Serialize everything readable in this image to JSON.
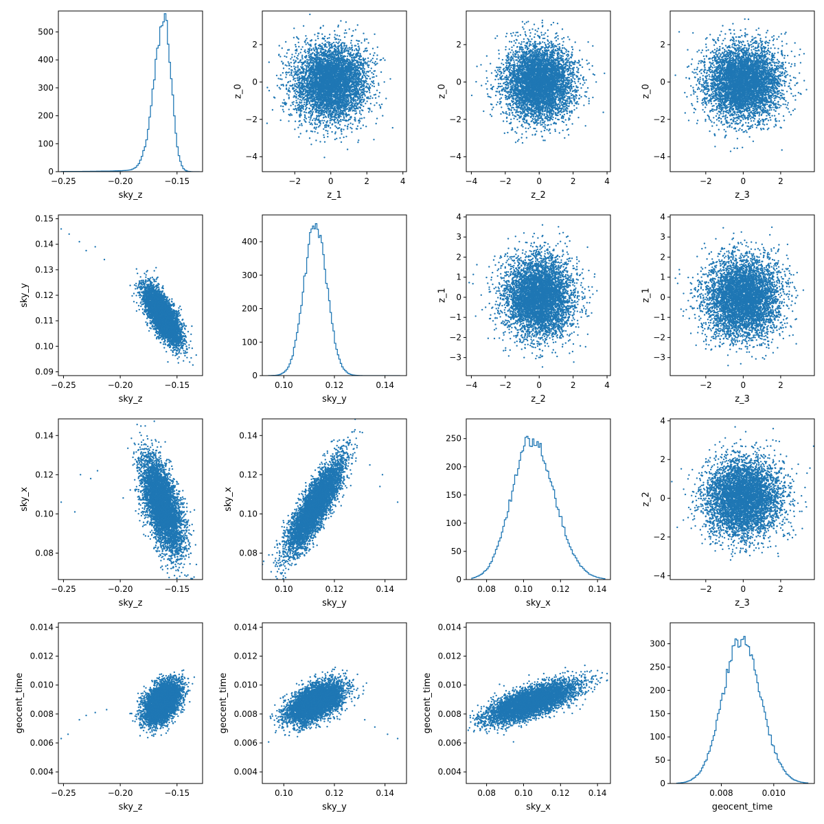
{
  "colors": {
    "series": "#1f77b4",
    "axis": "#000000",
    "background": "#ffffff"
  },
  "chart_data": [
    {
      "row": 0,
      "col": 0,
      "type": "histogram",
      "xlabel": "sky_z",
      "ylabel": "",
      "xlim": [
        -0.2545,
        -0.1275
      ],
      "ylim": [
        0,
        575
      ],
      "xticks": [
        -0.25,
        -0.2,
        -0.15
      ],
      "xticklabels": [
        "−0.25",
        "−0.20",
        "−0.15"
      ],
      "yticks": [
        0,
        100,
        200,
        300,
        400,
        500
      ],
      "yticklabels": [
        "0",
        "100",
        "200",
        "300",
        "400",
        "500"
      ],
      "peaks": [
        {
          "center": -0.161,
          "height": 548,
          "width_left": 0.009,
          "width_right": 0.006
        }
      ],
      "range": [
        -0.252,
        -0.13
      ],
      "tail_left": 0.03
    },
    {
      "row": 0,
      "col": 1,
      "type": "scatter",
      "xlabel": "z_1",
      "ylabel": "z_0",
      "xlim": [
        -3.8,
        4.2
      ],
      "ylim": [
        -4.8,
        3.8
      ],
      "xticks": [
        -2,
        0,
        2,
        4
      ],
      "xticklabels": [
        "−2",
        "0",
        "2",
        "4"
      ],
      "yticks": [
        -4,
        -2,
        0,
        2
      ],
      "yticklabels": [
        "−4",
        "−2",
        "0",
        "2"
      ],
      "center": [
        0,
        0
      ],
      "spread": [
        1,
        1
      ],
      "corr": 0
    },
    {
      "row": 0,
      "col": 2,
      "type": "scatter",
      "xlabel": "z_2",
      "ylabel": "z_0",
      "xlim": [
        -4.3,
        4.2
      ],
      "ylim": [
        -4.8,
        3.8
      ],
      "xticks": [
        -4,
        -2,
        0,
        2,
        4
      ],
      "xticklabels": [
        "−4",
        "−2",
        "0",
        "2",
        "4"
      ],
      "yticks": [
        -4,
        -2,
        0,
        2
      ],
      "yticklabels": [
        "−4",
        "−2",
        "0",
        "2"
      ],
      "center": [
        0,
        0
      ],
      "spread": [
        1,
        1
      ],
      "corr": 0
    },
    {
      "row": 0,
      "col": 3,
      "type": "scatter",
      "xlabel": "z_3",
      "ylabel": "z_0",
      "xlim": [
        -3.9,
        3.8
      ],
      "ylim": [
        -4.8,
        3.8
      ],
      "xticks": [
        -2,
        0,
        2
      ],
      "xticklabels": [
        "−2",
        "0",
        "2"
      ],
      "yticks": [
        -4,
        -2,
        0,
        2
      ],
      "yticklabels": [
        "−4",
        "−2",
        "0",
        "2"
      ],
      "center": [
        0,
        0
      ],
      "spread": [
        1,
        1
      ],
      "corr": 0
    },
    {
      "row": 1,
      "col": 0,
      "type": "scatter",
      "xlabel": "sky_z",
      "ylabel": "sky_y",
      "xlim": [
        -0.2545,
        -0.1275
      ],
      "ylim": [
        0.0885,
        0.1515
      ],
      "xticks": [
        -0.25,
        -0.2,
        -0.15
      ],
      "xticklabels": [
        "−0.25",
        "−0.20",
        "−0.15"
      ],
      "yticks": [
        0.09,
        0.1,
        0.11,
        0.12,
        0.13,
        0.14,
        0.15
      ],
      "yticklabels": [
        "0.09",
        "0.10",
        "0.11",
        "0.12",
        "0.13",
        "0.14",
        "0.15"
      ],
      "center": [
        -0.163,
        0.112
      ],
      "spread": [
        0.008,
        0.0055
      ],
      "corr": -0.72,
      "outliers": [
        [
          -0.252,
          0.146
        ],
        [
          -0.245,
          0.144
        ],
        [
          -0.236,
          0.141
        ],
        [
          -0.23,
          0.1375
        ],
        [
          -0.222,
          0.139
        ],
        [
          -0.214,
          0.134
        ]
      ]
    },
    {
      "row": 1,
      "col": 1,
      "type": "histogram",
      "xlabel": "sky_y",
      "ylabel": "",
      "xlim": [
        0.0915,
        0.1485
      ],
      "ylim": [
        0,
        480
      ],
      "xticks": [
        0.1,
        0.12,
        0.14
      ],
      "xticklabels": [
        "0.10",
        "0.12",
        "0.14"
      ],
      "yticks": [
        0,
        100,
        200,
        300,
        400
      ],
      "yticklabels": [
        "0",
        "100",
        "200",
        "300",
        "400"
      ],
      "peaks": [
        {
          "center": 0.1125,
          "height": 455,
          "width_left": 0.0045,
          "width_right": 0.0045
        }
      ],
      "range": [
        0.094,
        0.146
      ]
    },
    {
      "row": 1,
      "col": 2,
      "type": "scatter",
      "xlabel": "z_2",
      "ylabel": "z_1",
      "xlim": [
        -4.3,
        4.2
      ],
      "ylim": [
        -3.9,
        4.1
      ],
      "xticks": [
        -4,
        -2,
        0,
        2,
        4
      ],
      "xticklabels": [
        "−4",
        "−2",
        "0",
        "2",
        "4"
      ],
      "yticks": [
        -3,
        -2,
        -1,
        0,
        1,
        2,
        3,
        4
      ],
      "yticklabels": [
        "−3",
        "−2",
        "−1",
        "0",
        "1",
        "2",
        "3",
        "4"
      ],
      "center": [
        0,
        0
      ],
      "spread": [
        1,
        1
      ],
      "corr": 0
    },
    {
      "row": 1,
      "col": 3,
      "type": "scatter",
      "xlabel": "z_3",
      "ylabel": "z_1",
      "xlim": [
        -3.9,
        3.8
      ],
      "ylim": [
        -3.9,
        4.1
      ],
      "xticks": [
        -2,
        0,
        2
      ],
      "xticklabels": [
        "−2",
        "0",
        "2"
      ],
      "yticks": [
        -3,
        -2,
        -1,
        0,
        1,
        2,
        3,
        4
      ],
      "yticklabels": [
        "−3",
        "−2",
        "−1",
        "0",
        "1",
        "2",
        "3",
        "4"
      ],
      "center": [
        0,
        0
      ],
      "spread": [
        1,
        1
      ],
      "corr": 0
    },
    {
      "row": 2,
      "col": 0,
      "type": "scatter",
      "xlabel": "sky_z",
      "ylabel": "sky_x",
      "xlim": [
        -0.2545,
        -0.1275
      ],
      "ylim": [
        0.0665,
        0.1485
      ],
      "xticks": [
        -0.25,
        -0.2,
        -0.15
      ],
      "xticklabels": [
        "−0.25",
        "−0.20",
        "−0.15"
      ],
      "yticks": [
        0.08,
        0.1,
        0.12,
        0.14
      ],
      "yticklabels": [
        "0.08",
        "0.10",
        "0.12",
        "0.14"
      ],
      "center": [
        -0.163,
        0.104
      ],
      "spread": [
        0.009,
        0.012
      ],
      "corr": -0.6,
      "outliers": [
        [
          -0.252,
          0.106
        ],
        [
          -0.24,
          0.101
        ],
        [
          -0.235,
          0.12
        ],
        [
          -0.226,
          0.118
        ],
        [
          -0.22,
          0.122
        ]
      ]
    },
    {
      "row": 2,
      "col": 1,
      "type": "scatter",
      "xlabel": "sky_y",
      "ylabel": "sky_x",
      "xlim": [
        0.0915,
        0.1485
      ],
      "ylim": [
        0.0665,
        0.1485
      ],
      "xticks": [
        0.1,
        0.12,
        0.14
      ],
      "xticklabels": [
        "0.10",
        "0.12",
        "0.14"
      ],
      "yticks": [
        0.08,
        0.1,
        0.12,
        0.14
      ],
      "yticklabels": [
        "0.08",
        "0.10",
        "0.12",
        "0.14"
      ],
      "center": [
        0.1125,
        0.104
      ],
      "spread": [
        0.0055,
        0.012
      ],
      "corr": 0.85,
      "outliers": [
        [
          0.139,
          0.12
        ],
        [
          0.145,
          0.106
        ],
        [
          0.134,
          0.125
        ],
        [
          0.138,
          0.114
        ]
      ]
    },
    {
      "row": 2,
      "col": 2,
      "type": "histogram",
      "xlabel": "sky_x",
      "ylabel": "",
      "xlim": [
        0.069,
        0.147
      ],
      "ylim": [
        0,
        285
      ],
      "xticks": [
        0.08,
        0.1,
        0.12,
        0.14
      ],
      "xticklabels": [
        "0.08",
        "0.10",
        "0.12",
        "0.14"
      ],
      "yticks": [
        0,
        50,
        100,
        150,
        200,
        250
      ],
      "yticklabels": [
        "0",
        "50",
        "100",
        "150",
        "200",
        "250"
      ],
      "peaks": [
        {
          "center": 0.104,
          "height": 250,
          "width_left": 0.0105,
          "width_right": 0.0125
        }
      ],
      "range": [
        0.072,
        0.144
      ],
      "bumps": [
        [
          0.106,
          22
        ]
      ]
    },
    {
      "row": 2,
      "col": 3,
      "type": "scatter",
      "xlabel": "z_3",
      "ylabel": "z_2",
      "xlim": [
        -3.9,
        3.8
      ],
      "ylim": [
        -4.2,
        4.1
      ],
      "xticks": [
        -2,
        0,
        2
      ],
      "xticklabels": [
        "−2",
        "0",
        "2"
      ],
      "yticks": [
        -4,
        -2,
        0,
        2,
        4
      ],
      "yticklabels": [
        "−4",
        "−2",
        "0",
        "2",
        "4"
      ],
      "center": [
        0,
        0
      ],
      "spread": [
        1,
        1
      ],
      "corr": 0
    },
    {
      "row": 3,
      "col": 0,
      "type": "scatter",
      "xlabel": "sky_z",
      "ylabel": "geocent_time",
      "xlim": [
        -0.2545,
        -0.1275
      ],
      "ylim": [
        0.0032,
        0.0143
      ],
      "xticks": [
        -0.25,
        -0.2,
        -0.15
      ],
      "xticklabels": [
        "−0.25",
        "−0.20",
        "−0.15"
      ],
      "yticks": [
        0.004,
        0.006,
        0.008,
        0.01,
        0.012,
        0.014
      ],
      "yticklabels": [
        "0.004",
        "0.006",
        "0.008",
        "0.010",
        "0.012",
        "0.014"
      ],
      "center": [
        -0.163,
        0.0088
      ],
      "spread": [
        0.008,
        0.0007
      ],
      "corr": 0.45,
      "outliers": [
        [
          -0.252,
          0.0063
        ],
        [
          -0.246,
          0.0066
        ],
        [
          -0.236,
          0.0076
        ],
        [
          -0.23,
          0.0079
        ],
        [
          -0.222,
          0.0081
        ],
        [
          -0.212,
          0.0083
        ]
      ]
    },
    {
      "row": 3,
      "col": 1,
      "type": "scatter",
      "xlabel": "sky_y",
      "ylabel": "geocent_time",
      "xlim": [
        0.0915,
        0.1485
      ],
      "ylim": [
        0.0032,
        0.0143
      ],
      "xticks": [
        0.1,
        0.12,
        0.14
      ],
      "xticklabels": [
        "0.10",
        "0.12",
        "0.14"
      ],
      "yticks": [
        0.004,
        0.006,
        0.008,
        0.01,
        0.012,
        0.014
      ],
      "yticklabels": [
        "0.004",
        "0.006",
        "0.008",
        "0.010",
        "0.012",
        "0.014"
      ],
      "center": [
        0.1125,
        0.0088
      ],
      "spread": [
        0.0055,
        0.0007
      ],
      "corr": 0.55,
      "outliers": [
        [
          0.145,
          0.0063
        ],
        [
          0.141,
          0.0066
        ],
        [
          0.136,
          0.0071
        ],
        [
          0.132,
          0.0076
        ]
      ]
    },
    {
      "row": 3,
      "col": 2,
      "type": "scatter",
      "xlabel": "sky_x",
      "ylabel": "geocent_time",
      "xlim": [
        0.069,
        0.147
      ],
      "ylim": [
        0.0032,
        0.0143
      ],
      "xticks": [
        0.08,
        0.1,
        0.12,
        0.14
      ],
      "xticklabels": [
        "0.08",
        "0.10",
        "0.12",
        "0.14"
      ],
      "yticks": [
        0.004,
        0.006,
        0.008,
        0.01,
        0.012,
        0.014
      ],
      "yticklabels": [
        "0.004",
        "0.006",
        "0.008",
        "0.010",
        "0.012",
        "0.014"
      ],
      "center": [
        0.104,
        0.0088
      ],
      "spread": [
        0.012,
        0.0007
      ],
      "corr": 0.7,
      "outliers": [
        [
          0.075,
          0.0072
        ],
        [
          0.14,
          0.011
        ],
        [
          0.145,
          0.0103
        ]
      ]
    },
    {
      "row": 3,
      "col": 3,
      "type": "histogram",
      "xlabel": "geocent_time",
      "ylabel": "",
      "xlim": [
        0.00605,
        0.01155
      ],
      "ylim": [
        0,
        345
      ],
      "xticks": [
        0.008,
        0.01
      ],
      "xticklabels": [
        "0.008",
        "0.010"
      ],
      "yticks": [
        0,
        50,
        100,
        150,
        200,
        250,
        300
      ],
      "yticklabels": [
        "0",
        "50",
        "100",
        "150",
        "200",
        "250",
        "300"
      ],
      "peaks": [
        {
          "center": 0.00875,
          "height": 310,
          "width_left": 0.0007,
          "width_right": 0.00075
        }
      ],
      "range": [
        0.0063,
        0.0113
      ]
    }
  ]
}
